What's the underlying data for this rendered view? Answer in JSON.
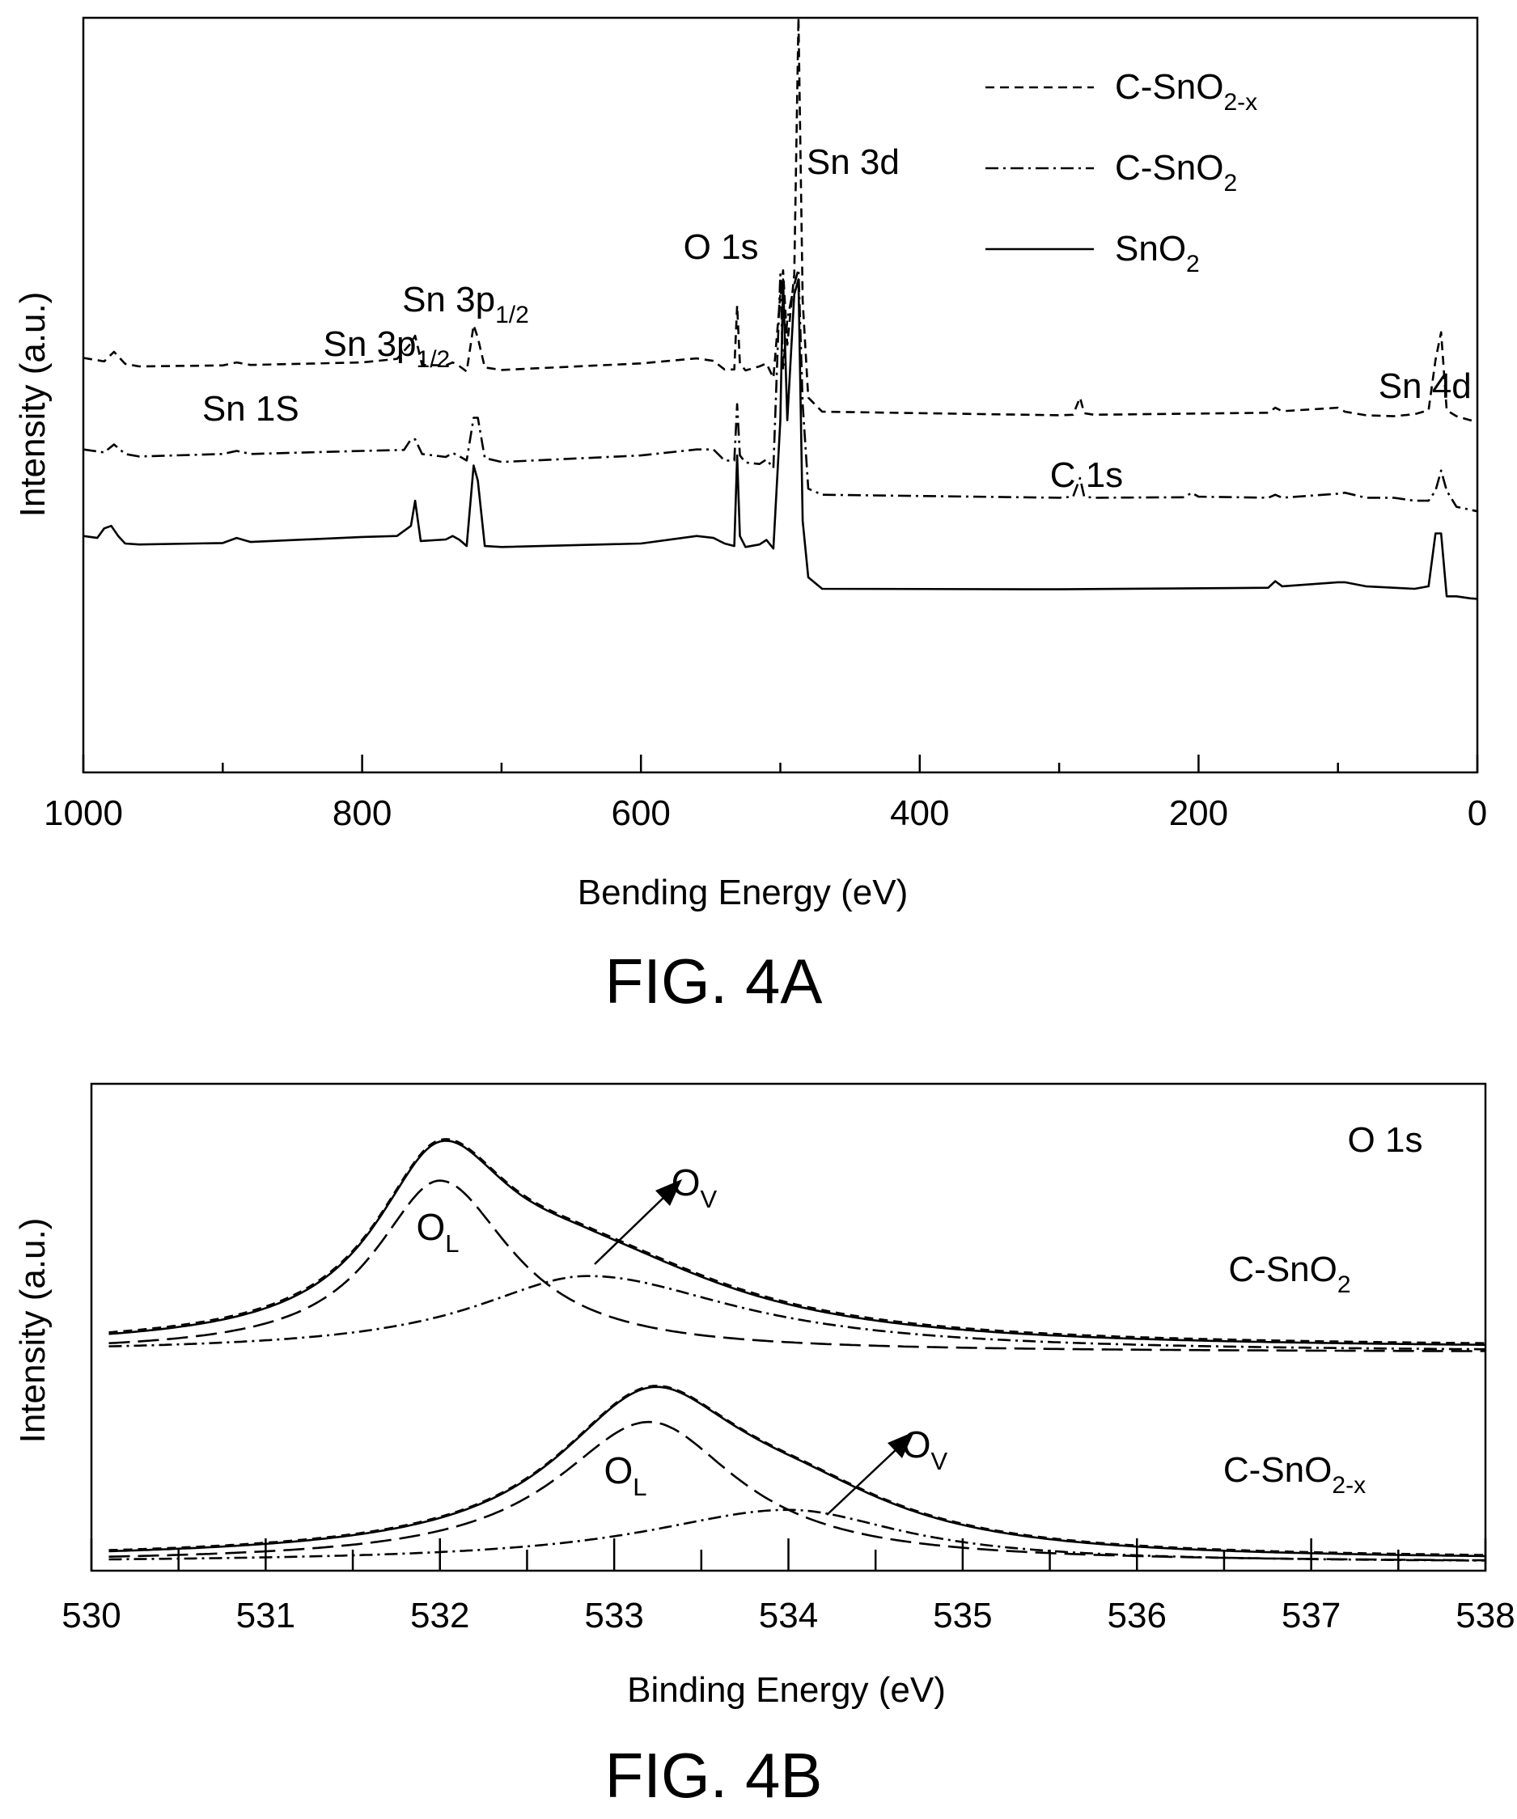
{
  "chart_data": [
    {
      "type": "line",
      "caption": "FIG. 4A",
      "xlabel": "Bending Energy (eV)",
      "ylabel": "Intensity (a.u.)",
      "xlim": [
        1000,
        0
      ],
      "x_reversed": true,
      "x_ticks": [
        "1000",
        "800",
        "600",
        "400",
        "200",
        "0"
      ],
      "x_tick_values": [
        1000,
        800,
        600,
        400,
        200,
        0
      ],
      "y_unit": "a.u.",
      "y_ticks_shown": false,
      "grid": false,
      "legend_position": "top-right",
      "legend": [
        {
          "name": "C-SnO2-x",
          "base": "C-SnO",
          "sub": "2-x",
          "style": "dashed"
        },
        {
          "name": "C-SnO2",
          "base": "C-SnO",
          "sub": "2",
          "style": "dash-dot"
        },
        {
          "name": "SnO2",
          "base": "SnO",
          "sub": "2",
          "style": "solid"
        }
      ],
      "peak_labels": [
        {
          "text": "Sn 1S",
          "main": "Sn 1S",
          "sub": "",
          "x": 880
        },
        {
          "text": "Sn 3p1/2",
          "main": "Sn 3p",
          "sub": "1/2",
          "x": 765
        },
        {
          "text": "Sn 3p1/2",
          "main": "Sn 3p",
          "sub": "1/2",
          "x": 720
        },
        {
          "text": "O 1s",
          "main": "O 1s",
          "sub": "",
          "x": 531
        },
        {
          "text": "Sn 3d",
          "main": "Sn 3d",
          "sub": "",
          "x": 487
        },
        {
          "text": "C 1s",
          "main": "C 1s",
          "sub": "",
          "x": 285
        },
        {
          "text": "Sn 4d",
          "main": "Sn 4d",
          "sub": "",
          "x": 26
        }
      ],
      "series": [
        {
          "name": "C-SnO2-x",
          "style": "dashed",
          "x": [
            1000,
            985,
            978,
            970,
            960,
            900,
            890,
            880,
            800,
            775,
            765,
            762,
            757,
            740,
            735,
            730,
            725,
            720,
            717,
            712,
            700,
            600,
            560,
            548,
            540,
            533,
            531,
            529,
            525,
            515,
            510,
            505,
            500,
            498,
            495,
            490,
            487,
            484,
            480,
            470,
            300,
            290,
            285,
            282,
            275,
            150,
            145,
            140,
            100,
            95,
            80,
            60,
            45,
            35,
            30,
            26,
            22,
            15,
            5,
            0
          ],
          "values": [
            82.4,
            81.7,
            83.6,
            81.2,
            80.7,
            80.9,
            81.5,
            81.0,
            81.5,
            82.2,
            85.3,
            86.8,
            81.0,
            80.9,
            81.5,
            80.7,
            79.7,
            88.9,
            86.4,
            80.5,
            80.0,
            81.3,
            82.3,
            81.8,
            80.1,
            80.1,
            92.8,
            81.3,
            79.9,
            80.7,
            81.3,
            78.4,
            95.0,
            99.8,
            85.0,
            99.0,
            150.0,
            93.8,
            74.5,
            71.7,
            71.0,
            71.1,
            74.5,
            71.4,
            71.1,
            71.5,
            72.5,
            71.8,
            72.5,
            71.7,
            71.0,
            70.8,
            71.2,
            72.0,
            82.0,
            87.5,
            72.0,
            70.8,
            70.0,
            69.8
          ]
        },
        {
          "name": "C-SnO2",
          "style": "dash-dot",
          "x": [
            1000,
            985,
            978,
            970,
            960,
            900,
            890,
            880,
            800,
            770,
            765,
            762,
            757,
            740,
            735,
            730,
            725,
            720,
            717,
            712,
            700,
            600,
            560,
            548,
            540,
            533,
            531,
            529,
            525,
            515,
            510,
            505,
            500,
            498,
            495,
            490,
            487,
            484,
            480,
            470,
            300,
            290,
            285,
            282,
            275,
            210,
            205,
            200,
            150,
            145,
            140,
            100,
            95,
            80,
            60,
            45,
            35,
            30,
            26,
            22,
            15,
            5,
            0
          ],
          "values": [
            64.2,
            63.6,
            65.2,
            63.3,
            62.8,
            63.3,
            63.9,
            63.3,
            63.9,
            64.1,
            66.2,
            66.2,
            63.3,
            62.7,
            63.5,
            62.8,
            62.0,
            70.5,
            70.5,
            62.5,
            61.7,
            63.0,
            64.2,
            64.2,
            62.0,
            62.0,
            73.2,
            63.0,
            61.6,
            61.3,
            62.2,
            60.5,
            99.0,
            80.0,
            90.0,
            97.0,
            100.0,
            73.2,
            56.4,
            55.2,
            54.6,
            54.8,
            58.5,
            54.8,
            54.6,
            54.7,
            55.6,
            54.8,
            54.6,
            55.2,
            54.6,
            55.4,
            55.6,
            54.6,
            54.6,
            54.0,
            54.0,
            56.0,
            60.0,
            56.0,
            52.8,
            52.2,
            51.9
          ]
        },
        {
          "name": "SnO2",
          "style": "solid",
          "x": [
            1000,
            990,
            985,
            980,
            975,
            970,
            960,
            900,
            890,
            880,
            800,
            775,
            765,
            762,
            758,
            740,
            735,
            730,
            725,
            720,
            717,
            712,
            700,
            600,
            560,
            548,
            540,
            533,
            531,
            529,
            525,
            515,
            510,
            505,
            500,
            498,
            495,
            490,
            487,
            484,
            480,
            470,
            300,
            150,
            145,
            140,
            100,
            95,
            80,
            60,
            45,
            35,
            30,
            26,
            22,
            15,
            5,
            0
          ],
          "values": [
            47.0,
            46.6,
            48.5,
            49.0,
            47.0,
            45.5,
            45.3,
            45.6,
            46.6,
            45.8,
            46.8,
            47.0,
            49.0,
            54.0,
            46.0,
            46.3,
            47.0,
            46.2,
            45.0,
            61.0,
            58.0,
            45.0,
            44.8,
            45.5,
            47.0,
            46.6,
            45.5,
            45.0,
            63.0,
            47.0,
            44.8,
            45.3,
            46.2,
            44.5,
            70.0,
            98.0,
            70.0,
            95.0,
            98.0,
            50.0,
            38.8,
            36.5,
            36.4,
            36.7,
            38.0,
            37.0,
            37.8,
            37.8,
            37.0,
            36.7,
            36.5,
            37.0,
            47.5,
            47.5,
            35.0,
            35.0,
            34.6,
            34.5
          ]
        }
      ]
    },
    {
      "type": "line",
      "caption": "FIG. 4B",
      "xlabel": "Binding Energy (eV)",
      "ylabel": "Intensity (a.u.)",
      "xlim": [
        530,
        538
      ],
      "x_ticks": [
        "530",
        "531",
        "532",
        "533",
        "534",
        "535",
        "536",
        "537",
        "538"
      ],
      "x_tick_values": [
        530,
        531,
        532,
        533,
        534,
        535,
        536,
        537,
        538
      ],
      "x_minor_ticks": [
        530.5,
        531.5,
        532.5,
        533.5,
        534.5,
        535.5,
        536.5,
        537.5
      ],
      "y_ticks_shown": false,
      "grid": false,
      "panel_label": "O 1s",
      "annotations": [
        {
          "text": "OL",
          "main": "O",
          "sub": "L",
          "x": 532.0,
          "series": "C-SnO2"
        },
        {
          "text": "OV",
          "main": "O",
          "sub": "V",
          "x": 532.9,
          "series": "C-SnO2"
        },
        {
          "text": "OL",
          "main": "O",
          "sub": "L",
          "x": 533.2,
          "series": "C-SnO2-x"
        },
        {
          "text": "OV",
          "main": "O",
          "sub": "V",
          "x": 534.1,
          "series": "C-SnO2-x"
        }
      ],
      "series_labels": [
        {
          "name": "C-SnO2",
          "main": "C-SnO",
          "sub": "2"
        },
        {
          "name": "C-SnO2-x",
          "main": "C-SnO",
          "sub": "2-x"
        }
      ],
      "series": [
        {
          "name": "C-SnO2",
          "components": [
            {
              "role": "raw data",
              "style": "solid",
              "type": "sum",
              "offset": 0.0
            },
            {
              "role": "fitted envelope",
              "style": "dashed",
              "type": "sum",
              "offset": 0.006
            },
            {
              "role": "O_L",
              "style": "long-dash",
              "type": "peak",
              "center": 532.0,
              "height": 0.63,
              "sigma_left": 0.45,
              "sigma_right": 0.5
            },
            {
              "role": "O_V",
              "style": "dash-dot",
              "type": "peak",
              "center": 532.85,
              "height": 0.28,
              "sigma_left": 0.8,
              "sigma_right": 1.05
            }
          ],
          "baseline": 0.012,
          "tail_end": 0.0
        },
        {
          "name": "C-SnO2-x",
          "components": [
            {
              "role": "raw data",
              "style": "solid",
              "type": "sum",
              "offset": 0.0
            },
            {
              "role": "fitted envelope",
              "style": "dashed",
              "type": "sum",
              "offset": 0.005
            },
            {
              "role": "O_L",
              "style": "long-dash",
              "type": "peak",
              "center": 533.2,
              "height": 0.64,
              "sigma_left": 0.65,
              "sigma_right": 0.62
            },
            {
              "role": "O_V",
              "style": "dash-dot",
              "type": "peak",
              "center": 534.0,
              "height": 0.24,
              "sigma_left": 1.0,
              "sigma_right": 0.8
            }
          ],
          "baseline": 0.01,
          "tail_end": 0.0
        }
      ]
    }
  ]
}
